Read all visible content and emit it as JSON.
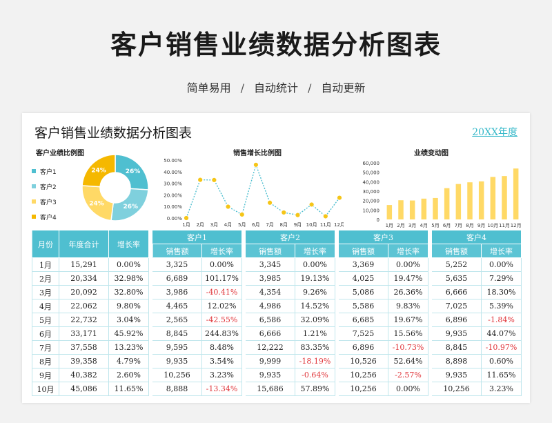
{
  "hero": {
    "title": "客户销售业绩数据分析图表",
    "tags": [
      "简单易用",
      "自动统计",
      "自动更新"
    ],
    "separator": "/"
  },
  "sheet": {
    "title": "客户销售业绩数据分析图表",
    "year_label": "20XX年度"
  },
  "chart_data": [
    {
      "type": "pie",
      "title": "客户业绩比例图",
      "categories": [
        "客户1",
        "客户2",
        "客户3",
        "客户4"
      ],
      "values": [
        26,
        26,
        24,
        24
      ],
      "value_labels": [
        "26%",
        "26%",
        "24%",
        "24%"
      ],
      "colors": [
        "#4fbfd0",
        "#7fd0dd",
        "#ffd966",
        "#f5b800"
      ],
      "legend": "left"
    },
    {
      "type": "line",
      "title": "销售增长比例图",
      "categories": [
        "1月",
        "2月",
        "3月",
        "4月",
        "5月",
        "6月",
        "7月",
        "8月",
        "9月",
        "10月",
        "11月",
        "12月"
      ],
      "y_ticks": [
        "0.00%",
        "10.00%",
        "20.00%",
        "30.00%",
        "40.00%",
        "50.00%"
      ],
      "ylim": [
        0,
        50
      ],
      "values": [
        0,
        32.98,
        32.8,
        9.8,
        3.04,
        45.92,
        13.23,
        4.79,
        2.6,
        11.65,
        1.5,
        17.5
      ],
      "line_color": "#4fbfd0",
      "marker_color": "#f5c518"
    },
    {
      "type": "bar",
      "title": "业绩变动图",
      "categories": [
        "1月",
        "2月",
        "3月",
        "4月",
        "5月",
        "6月",
        "7月",
        "8月",
        "9月",
        "10月",
        "11月",
        "12月"
      ],
      "y_ticks": [
        "0",
        "10,000",
        "20,000",
        "30,000",
        "40,000",
        "50,000",
        "60,000"
      ],
      "ylim": [
        0,
        60000
      ],
      "values": [
        15291,
        20334,
        20092,
        22062,
        22732,
        33171,
        37558,
        39358,
        40382,
        45086,
        46000,
        54000
      ],
      "bar_color": "#ffd966"
    }
  ],
  "table": {
    "month_header": "月份",
    "total_header": "年度合计",
    "growth_header": "增长率",
    "sales_header": "销售额",
    "groups": [
      "客户1",
      "客户2",
      "客户3",
      "客户4"
    ],
    "rows": [
      {
        "month": "1月",
        "total": "15,291",
        "growth": "0.00%",
        "c": [
          [
            "3,325",
            "0.00%"
          ],
          [
            "3,345",
            "0.00%"
          ],
          [
            "3,369",
            "0.00%"
          ],
          [
            "5,252",
            "0.00%"
          ]
        ]
      },
      {
        "month": "2月",
        "total": "20,334",
        "growth": "32.98%",
        "c": [
          [
            "6,689",
            "101.17%"
          ],
          [
            "3,985",
            "19.13%"
          ],
          [
            "4,025",
            "19.47%"
          ],
          [
            "5,635",
            "7.29%"
          ]
        ]
      },
      {
        "month": "3月",
        "total": "20,092",
        "growth": "32.80%",
        "c": [
          [
            "3,986",
            "-40.41%"
          ],
          [
            "4,354",
            "9.26%"
          ],
          [
            "5,086",
            "26.36%"
          ],
          [
            "6,666",
            "18.30%"
          ]
        ]
      },
      {
        "month": "4月",
        "total": "22,062",
        "growth": "9.80%",
        "c": [
          [
            "4,465",
            "12.02%"
          ],
          [
            "4,986",
            "14.52%"
          ],
          [
            "5,586",
            "9.83%"
          ],
          [
            "7,025",
            "5.39%"
          ]
        ]
      },
      {
        "month": "5月",
        "total": "22,732",
        "growth": "3.04%",
        "c": [
          [
            "2,565",
            "-42.55%"
          ],
          [
            "6,586",
            "32.09%"
          ],
          [
            "6,685",
            "19.67%"
          ],
          [
            "6,896",
            "-1.84%"
          ]
        ]
      },
      {
        "month": "6月",
        "total": "33,171",
        "growth": "45.92%",
        "c": [
          [
            "8,845",
            "244.83%"
          ],
          [
            "6,666",
            "1.21%"
          ],
          [
            "7,525",
            "15.56%"
          ],
          [
            "9,935",
            "44.07%"
          ]
        ]
      },
      {
        "month": "7月",
        "total": "37,558",
        "growth": "13.23%",
        "c": [
          [
            "9,595",
            "8.48%"
          ],
          [
            "12,222",
            "83.35%"
          ],
          [
            "6,896",
            "-10.73%"
          ],
          [
            "8,845",
            "-10.97%"
          ]
        ]
      },
      {
        "month": "8月",
        "total": "39,358",
        "growth": "4.79%",
        "c": [
          [
            "9,935",
            "3.54%"
          ],
          [
            "9,999",
            "-18.19%"
          ],
          [
            "10,526",
            "52.64%"
          ],
          [
            "8,898",
            "0.60%"
          ]
        ]
      },
      {
        "month": "9月",
        "total": "40,382",
        "growth": "2.60%",
        "c": [
          [
            "10,256",
            "3.23%"
          ],
          [
            "9,935",
            "-0.64%"
          ],
          [
            "10,256",
            "-2.57%"
          ],
          [
            "9,935",
            "11.65%"
          ]
        ]
      },
      {
        "month": "10月",
        "total": "45,086",
        "growth": "11.65%",
        "c": [
          [
            "8,888",
            "-13.34%"
          ],
          [
            "15,686",
            "57.89%"
          ],
          [
            "10,256",
            "0.00%"
          ],
          [
            "10,256",
            "3.23%"
          ]
        ]
      }
    ]
  }
}
